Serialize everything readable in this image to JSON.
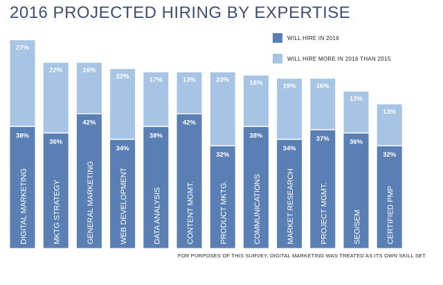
{
  "chart_data": {
    "type": "bar",
    "title": "2016 PROJECTED HIRING BY EXPERTISE",
    "categories": [
      "DIGITAL MARKETING",
      "MKTG  STRATEGY",
      "GENERAL MARKETING",
      "WEB DEVELOPMENT",
      "DATA ANALYSIS",
      "CONTENT MGMT.",
      "PRODUCT MKTG.",
      "COMMUNICATIONS",
      "MARKET RESEARCH",
      "PROJECT MGMT.",
      "SEO/SEM",
      "CERTIFIED PMP"
    ],
    "series": [
      {
        "name": "WILL HIRE IN 2016",
        "values": [
          38,
          36,
          42,
          34,
          38,
          42,
          32,
          38,
          34,
          37,
          36,
          32
        ],
        "labels": [
          "38%",
          "36%",
          "42%",
          "34%",
          "38%",
          "42%",
          "32%",
          "38%",
          "34%",
          "37%",
          "36%",
          "32%"
        ],
        "color": "#5a7fb5"
      },
      {
        "name": "WILL HIRE MORE IN 2016 THAN 2015",
        "values": [
          27,
          22,
          16,
          22,
          17,
          13,
          23,
          16,
          19,
          16,
          13,
          13
        ],
        "labels": [
          "27%",
          "22%",
          "16%",
          "22%",
          "17%",
          "13%",
          "23%",
          "16%",
          "19%",
          "16%",
          "13%",
          "13%"
        ],
        "color": "#a8c4e4"
      }
    ],
    "stacked": true,
    "ylim": [
      0,
      65
    ],
    "grid": false,
    "legend_position": "top-right"
  },
  "footnote": "FOR PURPOSES OF THIS SURVEY, DIGITAL MARKETING WAS TREATED AS ITS OWN SKILL SET",
  "colors": {
    "title": "#3d4f73",
    "label_text": "#ffffff",
    "bar_border": "#ffffff"
  }
}
